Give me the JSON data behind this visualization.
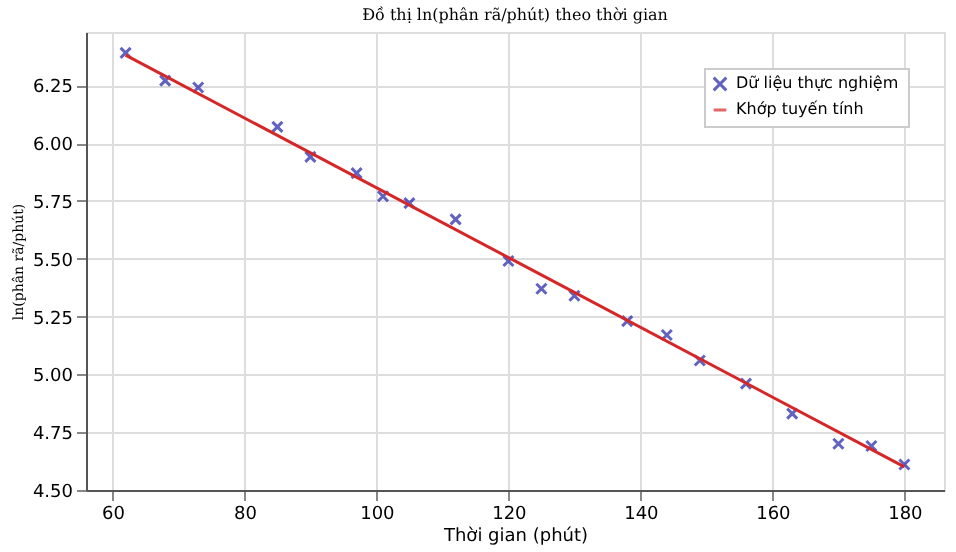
{
  "chart_data": {
    "type": "scatter",
    "title": "Đồ thị ln(phân rã/phút) theo thời gian",
    "xlabel": "Thời gian (phút)",
    "ylabel": "ln(phân rã/phút)",
    "xlim": [
      56,
      186
    ],
    "xticks": [
      60,
      80,
      100,
      120,
      140,
      160,
      180
    ],
    "ylim": [
      4.5,
      6.48
    ],
    "yticks": [
      {
        "value": 4.5,
        "label": "4.50"
      },
      4.75,
      {
        "value": 5.0,
        "label": "5.00"
      },
      5.25,
      {
        "value": 5.5,
        "label": "5.50"
      },
      5.75,
      {
        "value": 6.0,
        "label": "6.00"
      },
      6.25
    ],
    "grid": true,
    "legend": "top right",
    "series": [
      {
        "name": "Dữ liệu thực nghiệm",
        "marker": "cross",
        "color": "#2020a8",
        "x": [
          62,
          68,
          73,
          85,
          90,
          97,
          101,
          105,
          112,
          120,
          125,
          130,
          138,
          144,
          149,
          156,
          163,
          170,
          175,
          180
        ],
        "values": [
          6.39,
          6.27,
          6.24,
          6.07,
          5.94,
          5.87,
          5.77,
          5.74,
          5.67,
          5.49,
          5.37,
          5.34,
          5.23,
          5.17,
          5.06,
          4.96,
          4.83,
          4.7,
          4.69,
          4.61
        ]
      },
      {
        "name": "Khớp tuyến tính",
        "type": "line",
        "marker": "none",
        "line_style": "solid",
        "color": "#d62728",
        "x": [
          62,
          180
        ],
        "values": [
          6.38,
          4.6
        ]
      }
    ]
  }
}
